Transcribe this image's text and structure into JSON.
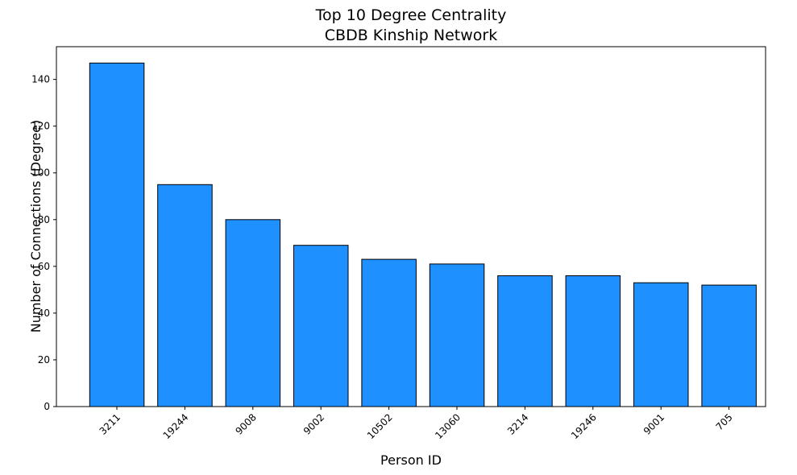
{
  "chart_data": {
    "type": "bar",
    "title_line1": "Top 10 Degree Centrality",
    "title_line2": "CBDB Kinship Network",
    "xlabel": "Person ID",
    "ylabel": "Number of Connections (Degree)",
    "categories": [
      "3211",
      "19244",
      "9008",
      "9002",
      "10502",
      "13060",
      "3214",
      "19246",
      "9001",
      "705"
    ],
    "values": [
      147,
      95,
      80,
      69,
      63,
      61,
      56,
      56,
      53,
      52
    ],
    "ylim": [
      0,
      154
    ],
    "yticks": [
      0,
      20,
      40,
      60,
      80,
      100,
      120,
      140
    ],
    "grid": false,
    "bar_color": "#1e90ff",
    "edge_color": "#000000"
  }
}
